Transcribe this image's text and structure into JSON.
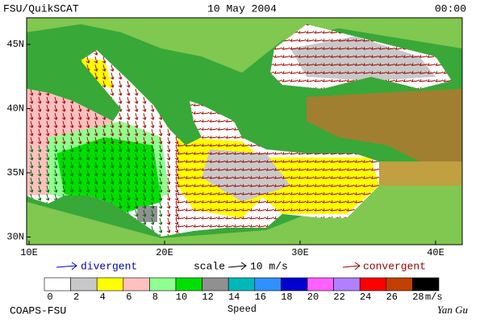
{
  "header": {
    "source": "FSU/QuikSCAT",
    "date": "10 May 2004",
    "time": "00:00"
  },
  "map": {
    "lat_labels": [
      "45N",
      "40N",
      "35N",
      "30N"
    ],
    "lon_labels": [
      "10E",
      "20E",
      "30E",
      "40E"
    ]
  },
  "legend": {
    "divergent": "divergent",
    "scale": "scale",
    "scale_value": "10 m/s",
    "convergent": "convergent"
  },
  "colorbar": {
    "ticks": [
      0,
      2,
      4,
      6,
      8,
      10,
      12,
      14,
      16,
      18,
      20,
      22,
      24,
      26,
      28
    ],
    "colors": [
      "#ffffff",
      "#c8c8c8",
      "#ffff00",
      "#ffc0c0",
      "#90ff90",
      "#00e000",
      "#909090",
      "#00b8b8",
      "#3090ff",
      "#0000d0",
      "#ff60ff",
      "#b080ff",
      "#ff0000",
      "#c04000",
      "#000000"
    ],
    "unit": "m/s",
    "title": "Speed"
  },
  "footer": {
    "org": "COAPS-FSU",
    "author": "Yan Gu"
  }
}
